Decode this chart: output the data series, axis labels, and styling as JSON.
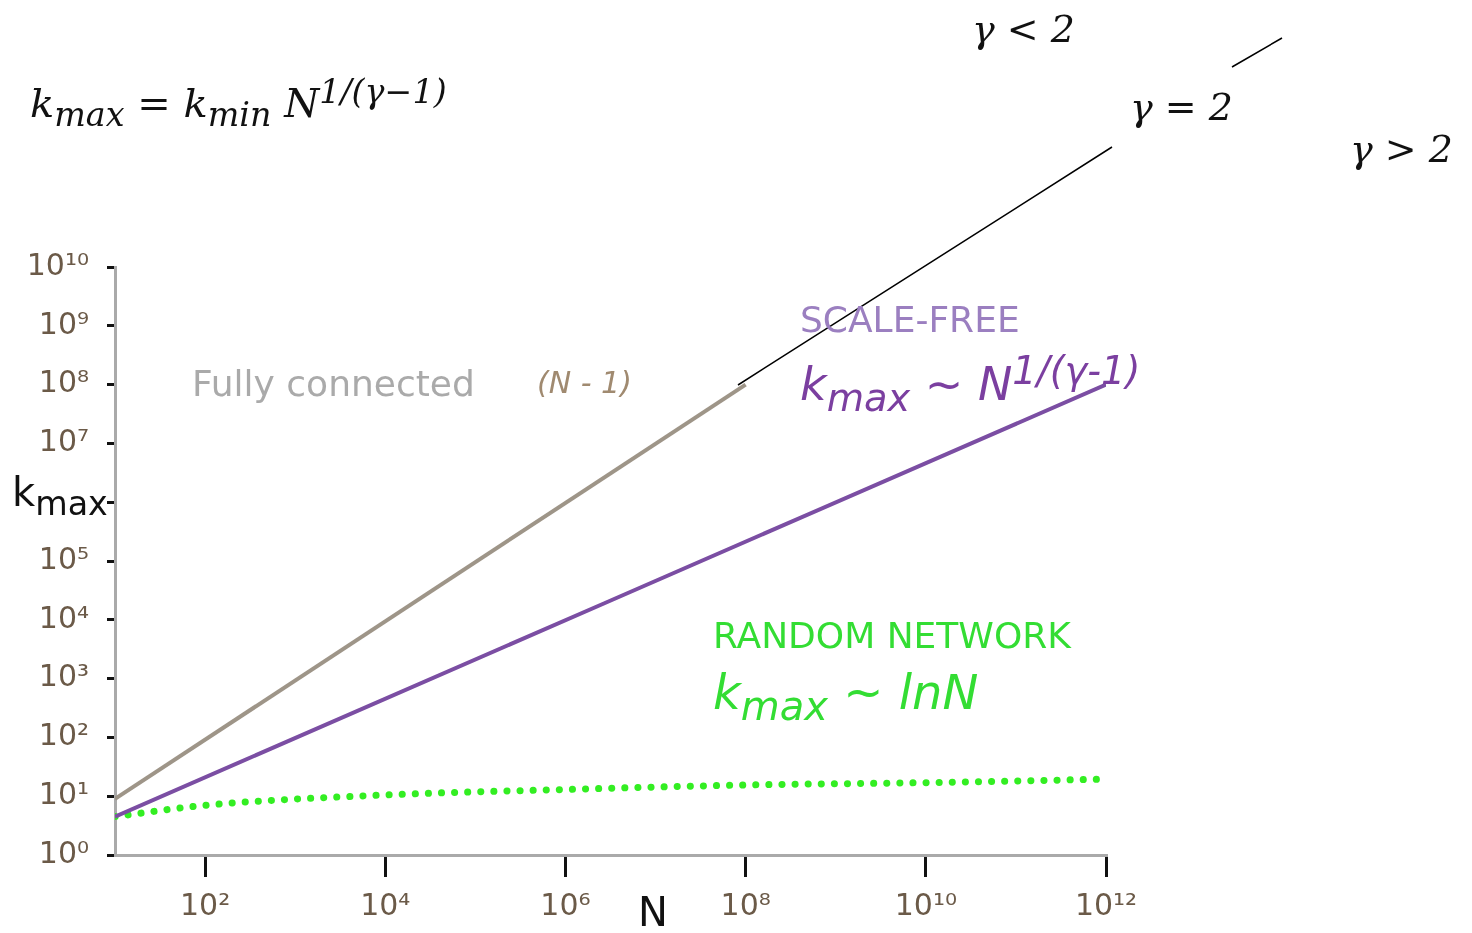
{
  "chart_data": {
    "type": "line",
    "xlabel": "N",
    "ylabel": "k$_{max}$",
    "log": "xy",
    "grid": false,
    "legend": false,
    "line_style": "solid",
    "marker": "none",
    "xlim": [
      10,
      1000000000000.0
    ],
    "ylim": [
      1,
      10000000000.0
    ],
    "xticks": [
      {
        "value": 100,
        "label": "10²"
      },
      {
        "value": 10000,
        "label": "10⁴"
      },
      {
        "value": 1000000,
        "label": "10⁶"
      },
      {
        "value": 100000000,
        "label": "10⁸"
      },
      {
        "value": 10000000000,
        "label": "10¹⁰"
      },
      {
        "value": 1000000000000,
        "label": "10¹²"
      }
    ],
    "yticks": [
      {
        "value": 1,
        "label": "10⁰"
      },
      {
        "value": 10,
        "label": "10¹"
      },
      {
        "value": 100,
        "label": "10²"
      },
      {
        "value": 1000,
        "label": "10³"
      },
      {
        "value": 10000,
        "label": "10⁴"
      },
      {
        "value": 100000,
        "label": "10⁵"
      },
      {
        "value": 1000000,
        "label": null
      },
      {
        "value": 10000000,
        "label": "10⁷"
      },
      {
        "value": 100000000,
        "label": "10⁸"
      },
      {
        "value": 1000000000,
        "label": "10⁹"
      },
      {
        "value": 10000000000,
        "label": "10¹⁰"
      }
    ],
    "series": [
      {
        "name": "Fully connected",
        "color": "#9e9588",
        "x": [
          10,
          100000000
        ],
        "values": [
          9,
          100000000
        ]
      },
      {
        "name": "SCALE-FREE",
        "color": "#7b4ea3",
        "x": [
          10,
          1000000000000
        ],
        "values": [
          4.5,
          100000000
        ]
      },
      {
        "name": "RANDOM NETWORK",
        "color": "#33ee22",
        "line_style": "dotted",
        "x": [
          10,
          100,
          10000,
          1000000,
          100000000,
          10000000000,
          1000000000000
        ],
        "values": [
          4.5,
          7,
          10.5,
          13,
          15.5,
          17,
          19.5
        ]
      }
    ],
    "annotations": [
      "k$_{max}$ = k$_{min}$ N$^{1/(γ−1)}$",
      "γ < 2",
      "γ = 2",
      "γ > 2",
      "(N - 1)",
      "k$_{max}$ ~ N$^{1/(γ-1)}$",
      "k$_{max}$ ~ lnN"
    ]
  }
}
